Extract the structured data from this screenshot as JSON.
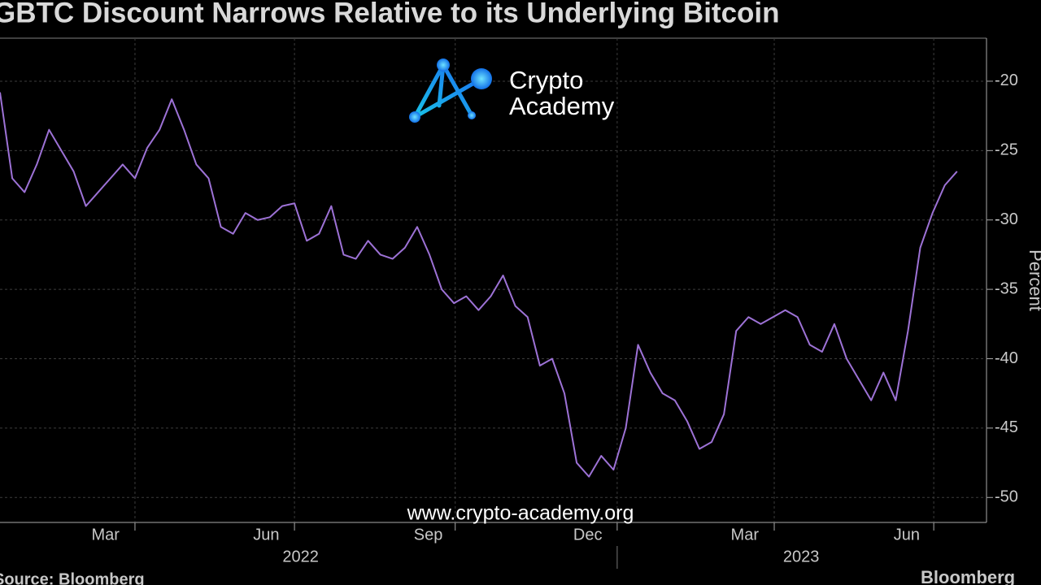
{
  "chart_data": {
    "type": "line",
    "title": "GBTC Discount Narrows Relative to its Underlying Bitcoin",
    "y_label": "Percent",
    "source": "Source: Bloomberg",
    "brand": "Bloomberg",
    "color": "#9d72d6",
    "grid": true,
    "xlim": [
      0,
      80.4
    ],
    "ylim": [
      -51.8,
      -16.9
    ],
    "yticks": [
      -20,
      -25,
      -30,
      -35,
      -40,
      -45,
      -50
    ],
    "xticks": [
      {
        "value": 8.6,
        "label": "Mar"
      },
      {
        "value": 21.7,
        "label": "Jun"
      },
      {
        "value": 34.9,
        "label": "Sep"
      },
      {
        "value": 47.9,
        "label": "Dec"
      },
      {
        "value": 60.7,
        "label": "Mar"
      },
      {
        "value": 73.9,
        "label": "Jun"
      }
    ],
    "year_ticks": [
      {
        "value": 24.5,
        "label": "2022"
      },
      {
        "value": 65.3,
        "label": "2023"
      }
    ],
    "year_boundary": 50.3,
    "xgrid": [
      11,
      24,
      37.1,
      50.3,
      63.1,
      76.1
    ],
    "series": [
      {
        "name": "GBTC discount",
        "color": "#9d72d6",
        "values": [
          -20.8,
          -27,
          -28,
          -26,
          -23.5,
          -25,
          -26.5,
          -29,
          -28,
          -27,
          -26,
          -27,
          -24.8,
          -23.5,
          -21.3,
          -23.5,
          -26,
          -27,
          -30.5,
          -31,
          -29.5,
          -30,
          -29.8,
          -29,
          -28.8,
          -31.5,
          -31,
          -29,
          -32.5,
          -32.8,
          -31.5,
          -32.5,
          -32.8,
          -32,
          -30.5,
          -32.5,
          -35,
          -36,
          -35.5,
          -36.5,
          -35.5,
          -34,
          -36.2,
          -37,
          -40.5,
          -40,
          -42.5,
          -47.5,
          -48.5,
          -47,
          -48,
          -45,
          -39,
          -41,
          -42.5,
          -43,
          -44.5,
          -46.5,
          -46,
          -44,
          -38,
          -37,
          -37.5,
          -37,
          -36.5,
          -37,
          -39,
          -39.5,
          -37.5,
          -40,
          -41.5,
          -43,
          -41,
          -43,
          -38,
          -32,
          -29.5,
          -27.5,
          -26.5
        ]
      }
    ]
  },
  "watermark": {
    "logo_line1": "Crypto",
    "logo_line2": "Academy",
    "url": "www.crypto-academy.org"
  }
}
